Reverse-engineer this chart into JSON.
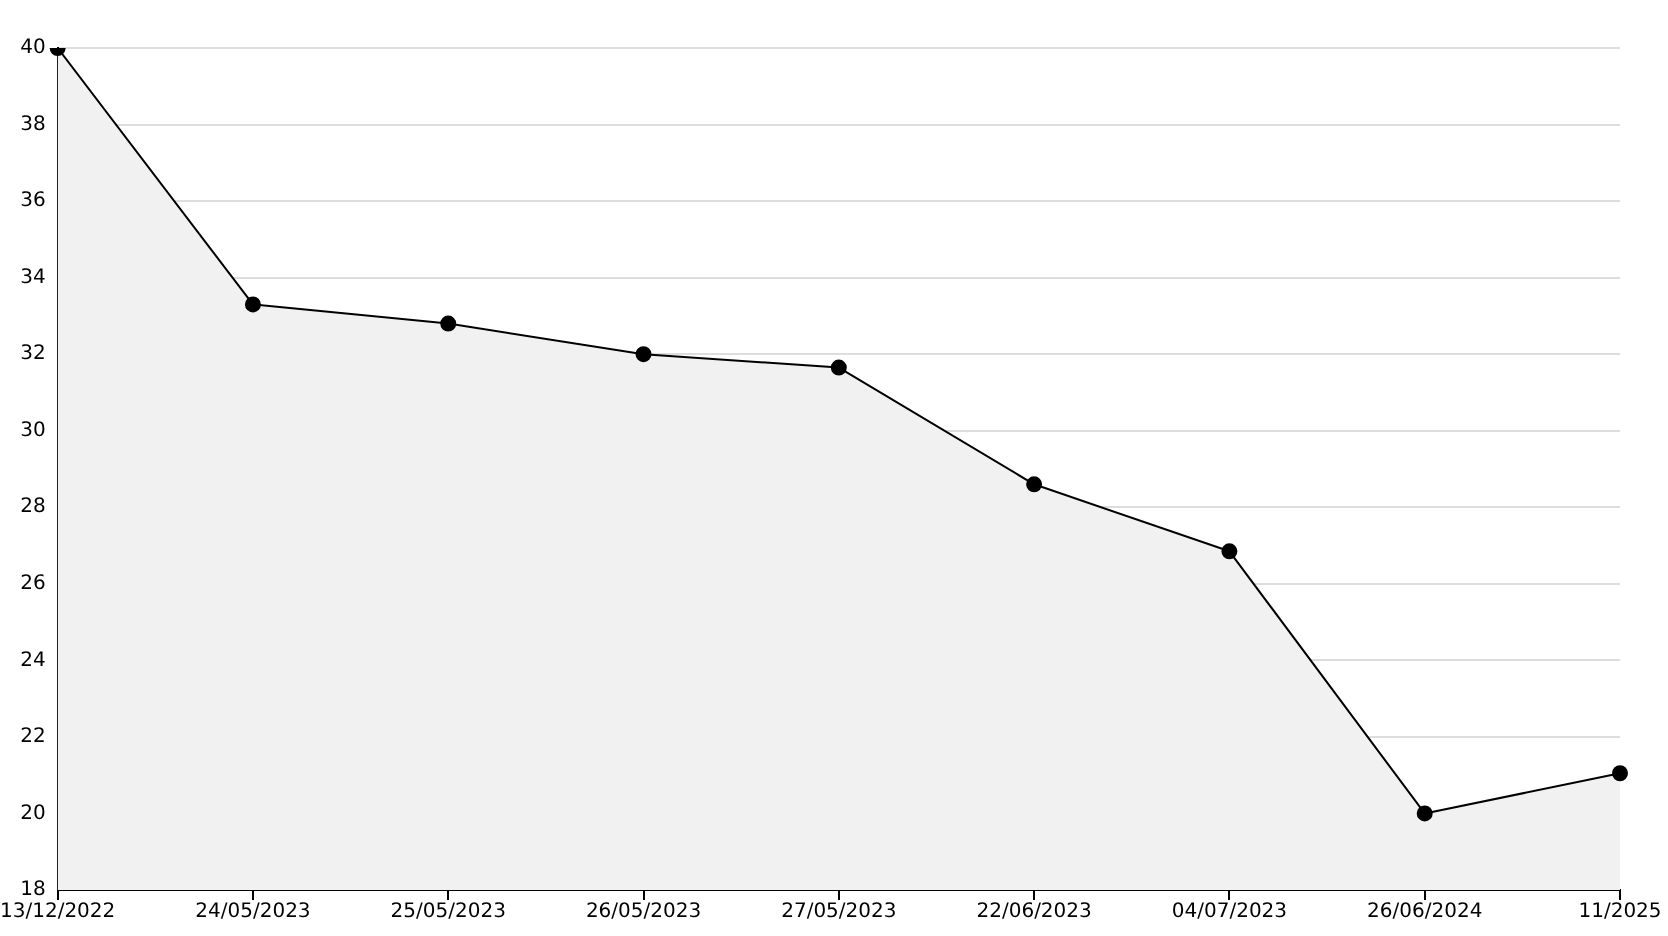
{
  "chart_data": {
    "type": "area",
    "categories": [
      "13/12/2022",
      "24/05/2023",
      "25/05/2023",
      "26/05/2023",
      "27/05/2023",
      "22/06/2023",
      "04/07/2023",
      "26/06/2024",
      "11/2025"
    ],
    "series": [
      {
        "color": "#000000",
        "values": [
          40,
          33.3,
          32.8,
          32.0,
          31.65,
          28.6,
          26.85,
          20.0,
          21.05
        ]
      }
    ],
    "ylim": [
      18,
      40
    ],
    "yticks": [
      18,
      20,
      22,
      24,
      26,
      28,
      30,
      32,
      34,
      36,
      38,
      40
    ],
    "grid": "y",
    "legend": false,
    "marker": "circle",
    "line_style": "solid"
  }
}
